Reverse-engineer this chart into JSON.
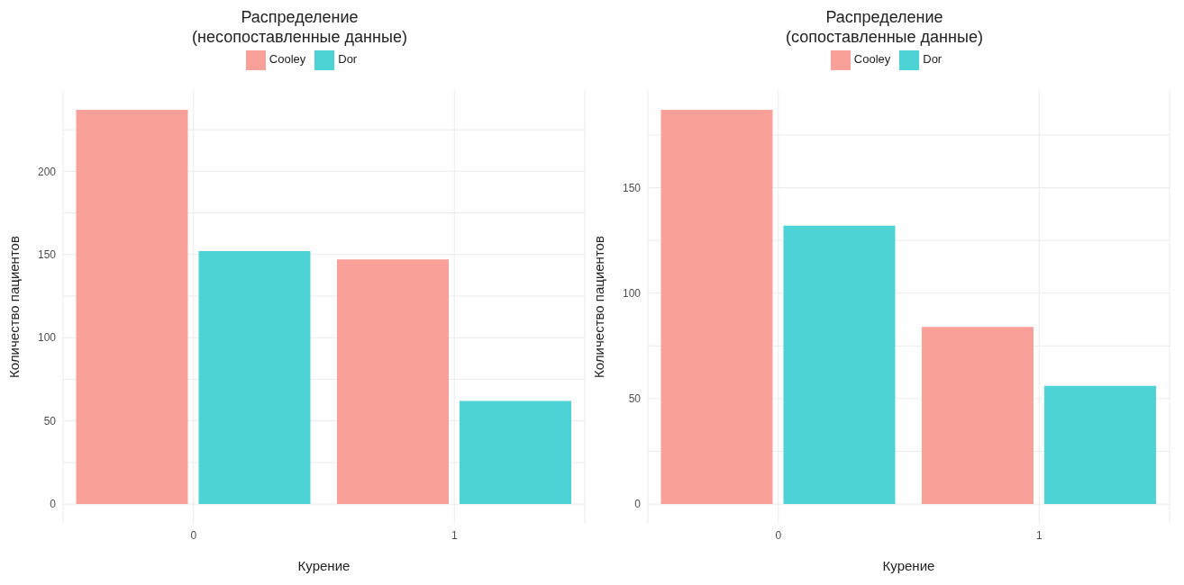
{
  "chart_data": [
    {
      "type": "bar",
      "title": "Распределение\n(несопоставленные данные)",
      "xlabel": "Курение",
      "ylabel": "Количество пациентов",
      "categories": [
        "0",
        "1"
      ],
      "series": [
        {
          "name": "Cooley",
          "color": "#f9a098",
          "values": [
            237,
            147
          ]
        },
        {
          "name": "Dor",
          "color": "#4dd2d6",
          "values": [
            152,
            62
          ]
        }
      ],
      "ylim": [
        -11.85,
        248.85
      ],
      "yticks": [
        0,
        {
          "value": 25,
          "label": null
        },
        50,
        {
          "value": 75,
          "label": null
        },
        100,
        {
          "value": 125,
          "label": null
        },
        150,
        {
          "value": 175,
          "label": null
        },
        200,
        {
          "value": 225,
          "label": null
        }
      ],
      "grid": true,
      "legend": "top"
    },
    {
      "type": "bar",
      "title": "Распределение\n(сопоставленные данные)",
      "xlabel": "Курение",
      "ylabel": "Количество пациентов",
      "categories": [
        "0",
        "1"
      ],
      "series": [
        {
          "name": "Cooley",
          "color": "#f9a098",
          "values": [
            187,
            84
          ]
        },
        {
          "name": "Dor",
          "color": "#4dd2d6",
          "values": [
            132,
            56
          ]
        }
      ],
      "ylim": [
        -9.35,
        196.35
      ],
      "yticks": [
        0,
        {
          "value": 25,
          "label": null
        },
        50,
        {
          "value": 75,
          "label": null
        },
        100,
        {
          "value": 125,
          "label": null
        },
        150,
        {
          "value": 175,
          "label": null
        }
      ],
      "grid": true,
      "legend": "top"
    }
  ]
}
